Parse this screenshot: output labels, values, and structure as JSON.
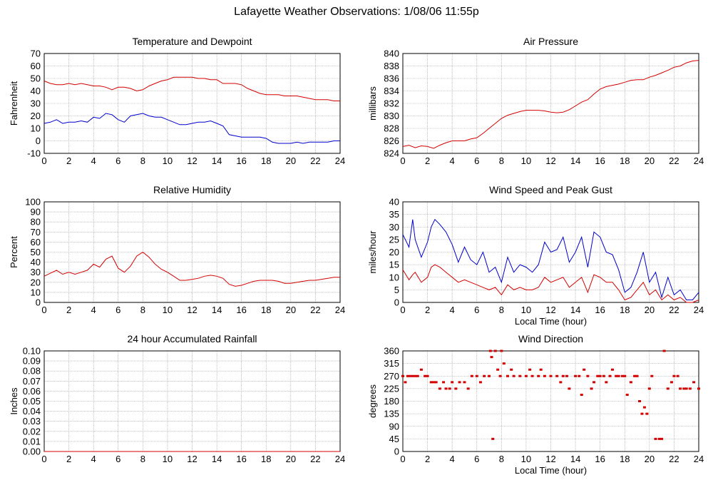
{
  "page": {
    "title": "Lafayette Weather Observations: 1/08/06 11:55p"
  },
  "colors": {
    "series_red": "#d40000",
    "series_blue": "#0000cc",
    "grid": "#999999"
  },
  "chart_data": [
    {
      "id": "temp",
      "type": "line",
      "title": "Temperature and Dewpoint",
      "xlabel": "",
      "ylabel": "Fahrenheit",
      "xlim": [
        0,
        24
      ],
      "ylim": [
        -10,
        70
      ],
      "xticks": [
        0,
        2,
        4,
        6,
        8,
        10,
        12,
        14,
        16,
        18,
        20,
        22,
        24
      ],
      "yticks": [
        -10,
        0,
        10,
        20,
        30,
        40,
        50,
        60,
        70
      ],
      "grid": true,
      "series": [
        {
          "color": "#d40000",
          "x": [
            0,
            0.5,
            1,
            1.5,
            2,
            2.5,
            3,
            3.5,
            4,
            4.5,
            5,
            5.5,
            6,
            6.5,
            7,
            7.5,
            8,
            8.5,
            9,
            9.5,
            10,
            10.5,
            11,
            11.5,
            12,
            12.5,
            13,
            13.5,
            14,
            14.5,
            15,
            15.5,
            16,
            16.5,
            17,
            17.5,
            18,
            18.5,
            19,
            19.5,
            20,
            20.5,
            21,
            21.5,
            22,
            22.5,
            23,
            23.5,
            24
          ],
          "y": [
            48,
            46,
            45,
            45,
            46,
            45,
            46,
            45,
            44,
            44,
            43,
            41,
            43,
            43,
            42,
            40,
            41,
            44,
            46,
            48,
            49,
            51,
            51,
            51,
            51,
            50,
            50,
            49,
            49,
            46,
            46,
            46,
            45,
            42,
            40,
            38,
            37,
            37,
            37,
            36,
            36,
            36,
            35,
            34,
            33,
            33,
            33,
            32,
            32
          ]
        },
        {
          "color": "#0000cc",
          "x": [
            0,
            0.5,
            1,
            1.5,
            2,
            2.5,
            3,
            3.5,
            4,
            4.5,
            5,
            5.5,
            6,
            6.5,
            7,
            7.5,
            8,
            8.5,
            9,
            9.5,
            10,
            10.5,
            11,
            11.5,
            12,
            12.5,
            13,
            13.5,
            14,
            14.5,
            15,
            15.5,
            16,
            16.5,
            17,
            17.5,
            18,
            18.5,
            19,
            19.5,
            20,
            20.5,
            21,
            21.5,
            22,
            22.5,
            23,
            23.5,
            24
          ],
          "y": [
            14,
            15,
            17,
            14,
            15,
            15,
            16,
            15,
            19,
            18,
            22,
            21,
            17,
            15,
            20,
            21,
            22,
            20,
            19,
            19,
            17,
            15,
            13,
            13,
            14,
            15,
            15,
            16,
            14,
            12,
            5,
            4,
            3,
            3,
            3,
            3,
            2,
            -1,
            -2,
            -2,
            -2,
            -1,
            -2,
            -1,
            -1,
            -1,
            -1,
            0,
            0
          ]
        }
      ]
    },
    {
      "id": "pressure",
      "type": "line",
      "title": "Air Pressure",
      "xlabel": "",
      "ylabel": "millibars",
      "xlim": [
        0,
        24
      ],
      "ylim": [
        824,
        840
      ],
      "xticks": [
        0,
        2,
        4,
        6,
        8,
        10,
        12,
        14,
        16,
        18,
        20,
        22,
        24
      ],
      "yticks": [
        824,
        826,
        828,
        830,
        832,
        834,
        836,
        838,
        840
      ],
      "grid": true,
      "series": [
        {
          "color": "#d40000",
          "x": [
            0,
            0.5,
            1,
            1.5,
            2,
            2.5,
            3,
            3.5,
            4,
            4.5,
            5,
            5.5,
            6,
            6.5,
            7,
            7.5,
            8,
            8.5,
            9,
            9.5,
            10,
            10.5,
            11,
            11.5,
            12,
            12.5,
            13,
            13.5,
            14,
            14.5,
            15,
            15.5,
            16,
            16.5,
            17,
            17.5,
            18,
            18.5,
            19,
            19.5,
            20,
            20.5,
            21,
            21.5,
            22,
            22.5,
            23,
            23.5,
            24
          ],
          "y": [
            825.1,
            825.3,
            824.9,
            825.2,
            825.1,
            824.8,
            825.3,
            825.7,
            826.0,
            826.0,
            826.0,
            826.3,
            826.5,
            827.2,
            828.0,
            828.8,
            829.6,
            830.1,
            830.4,
            830.7,
            830.9,
            830.9,
            830.9,
            830.8,
            830.6,
            830.5,
            830.6,
            831.0,
            831.6,
            832.2,
            832.6,
            833.5,
            834.3,
            834.7,
            834.9,
            835.1,
            835.4,
            835.7,
            835.8,
            835.8,
            836.2,
            836.5,
            836.9,
            837.3,
            837.8,
            838.0,
            838.5,
            838.8,
            838.9
          ]
        }
      ]
    },
    {
      "id": "humidity",
      "type": "line",
      "title": "Relative Humidity",
      "xlabel": "",
      "ylabel": "Percent",
      "xlim": [
        0,
        24
      ],
      "ylim": [
        0,
        100
      ],
      "xticks": [
        0,
        2,
        4,
        6,
        8,
        10,
        12,
        14,
        16,
        18,
        20,
        22,
        24
      ],
      "yticks": [
        0,
        10,
        20,
        30,
        40,
        50,
        60,
        70,
        80,
        90,
        100
      ],
      "grid": true,
      "series": [
        {
          "color": "#d40000",
          "x": [
            0,
            0.5,
            1,
            1.5,
            2,
            2.5,
            3,
            3.5,
            4,
            4.5,
            5,
            5.5,
            6,
            6.5,
            7,
            7.5,
            8,
            8.5,
            9,
            9.5,
            10,
            10.5,
            11,
            11.5,
            12,
            12.5,
            13,
            13.5,
            14,
            14.5,
            15,
            15.5,
            16,
            16.5,
            17,
            17.5,
            18,
            18.5,
            19,
            19.5,
            20,
            20.5,
            21,
            21.5,
            22,
            22.5,
            23,
            23.5,
            24
          ],
          "y": [
            26,
            29,
            32,
            28,
            30,
            28,
            30,
            32,
            38,
            35,
            43,
            46,
            34,
            30,
            36,
            46,
            50,
            45,
            38,
            33,
            30,
            26,
            22,
            22,
            23,
            24,
            26,
            27,
            26,
            24,
            18,
            16,
            17,
            19,
            21,
            22,
            22,
            22,
            21,
            19,
            19,
            20,
            21,
            22,
            22,
            23,
            24,
            25,
            25
          ]
        }
      ]
    },
    {
      "id": "wind",
      "type": "line",
      "title": "Wind Speed and Peak Gust",
      "xlabel": "Local Time (hour)",
      "ylabel": "miles/hour",
      "xlim": [
        0,
        24
      ],
      "ylim": [
        0,
        40
      ],
      "xticks": [
        0,
        2,
        4,
        6,
        8,
        10,
        12,
        14,
        16,
        18,
        20,
        22,
        24
      ],
      "yticks": [
        0,
        5,
        10,
        15,
        20,
        25,
        30,
        35,
        40
      ],
      "grid": true,
      "series": [
        {
          "color": "#0000cc",
          "x": [
            0,
            0.5,
            0.8,
            1,
            1.5,
            2,
            2.3,
            2.6,
            3,
            3.5,
            4,
            4.5,
            5,
            5.5,
            6,
            6.5,
            7,
            7.5,
            8,
            8.5,
            9,
            9.5,
            10,
            10.5,
            11,
            11.5,
            12,
            12.5,
            13,
            13.5,
            14,
            14.5,
            15,
            15.5,
            16,
            16.5,
            17,
            17.5,
            18,
            18.5,
            19,
            19.5,
            20,
            20.5,
            21,
            21.5,
            22,
            22.5,
            23,
            23.5,
            24
          ],
          "y": [
            27,
            22,
            33,
            25,
            18,
            24,
            30,
            33,
            31,
            28,
            23,
            16,
            22,
            17,
            15,
            20,
            12,
            14,
            8,
            18,
            12,
            15,
            14,
            12,
            15,
            24,
            20,
            21,
            26,
            16,
            20,
            26,
            14,
            28,
            26,
            20,
            19,
            13,
            4,
            6,
            12,
            20,
            8,
            12,
            2,
            10,
            3,
            5,
            1,
            1,
            4
          ]
        },
        {
          "color": "#d40000",
          "x": [
            0,
            0.5,
            0.8,
            1,
            1.5,
            2,
            2.3,
            2.6,
            3,
            3.5,
            4,
            4.5,
            5,
            5.5,
            6,
            6.5,
            7,
            7.5,
            8,
            8.5,
            9,
            9.5,
            10,
            10.5,
            11,
            11.5,
            12,
            12.5,
            13,
            13.5,
            14,
            14.5,
            15,
            15.5,
            16,
            16.5,
            17,
            17.5,
            18,
            18.5,
            19,
            19.5,
            20,
            20.5,
            21,
            21.5,
            22,
            22.5,
            23,
            23.5,
            24
          ],
          "y": [
            13,
            9,
            11,
            12,
            8,
            10,
            14,
            15,
            14,
            12,
            10,
            8,
            9,
            8,
            7,
            6,
            5,
            6,
            3,
            7,
            5,
            6,
            5,
            5,
            6,
            10,
            8,
            9,
            10,
            6,
            8,
            10,
            4,
            11,
            10,
            8,
            8,
            5,
            1,
            2,
            5,
            8,
            3,
            5,
            1,
            3,
            1,
            2,
            0,
            0,
            1
          ]
        }
      ]
    },
    {
      "id": "rain",
      "type": "line",
      "title": "24 hour Accumulated Rainfall",
      "xlabel": "",
      "ylabel": "Inches",
      "xlim": [
        0,
        24
      ],
      "ylim": [
        0,
        0.1
      ],
      "xticks": [
        0,
        2,
        4,
        6,
        8,
        10,
        12,
        14,
        16,
        18,
        20,
        22,
        24
      ],
      "yticks": [
        0,
        0.01,
        0.02,
        0.03,
        0.04,
        0.05,
        0.06,
        0.07,
        0.08,
        0.09,
        0.1
      ],
      "yticklabels": [
        "0.00",
        "0.01",
        "0.02",
        "0.03",
        "0.04",
        "0.05",
        "0.06",
        "0.07",
        "0.08",
        "0.09",
        "0.10"
      ],
      "grid": true,
      "series": [
        {
          "color": "#d40000",
          "x": [
            0,
            24
          ],
          "y": [
            0,
            0
          ]
        }
      ]
    },
    {
      "id": "direction",
      "type": "scatter",
      "title": "Wind Direction",
      "xlabel": "Local Time (hour)",
      "ylabel": "degrees",
      "xlim": [
        0,
        24
      ],
      "ylim": [
        0,
        360
      ],
      "xticks": [
        0,
        2,
        4,
        6,
        8,
        10,
        12,
        14,
        16,
        18,
        20,
        22,
        24
      ],
      "yticks": [
        0,
        45,
        90,
        135,
        180,
        225,
        270,
        315,
        360
      ],
      "grid": true,
      "series": [
        {
          "color": "#d40000",
          "x": [
            0,
            0.2,
            0.4,
            0.6,
            0.8,
            1.0,
            1.2,
            1.5,
            1.8,
            2.0,
            2.3,
            2.5,
            2.7,
            3.0,
            3.3,
            3.5,
            3.8,
            4.0,
            4.3,
            4.6,
            5.0,
            5.3,
            5.6,
            6.0,
            6.3,
            6.6,
            7.0,
            7.1,
            7.2,
            7.3,
            7.5,
            7.7,
            7.9,
            8.0,
            8.2,
            8.5,
            8.8,
            9.0,
            9.5,
            10.0,
            10.3,
            10.5,
            11.0,
            11.2,
            11.5,
            12.0,
            12.5,
            12.8,
            13.0,
            13.3,
            13.5,
            14.0,
            14.3,
            14.5,
            14.7,
            15.0,
            15.3,
            15.5,
            15.8,
            16.0,
            16.3,
            16.5,
            16.8,
            17.0,
            17.3,
            17.5,
            17.8,
            18.0,
            18.2,
            18.5,
            18.8,
            19.0,
            19.2,
            19.4,
            19.6,
            19.8,
            20.0,
            20.2,
            20.5,
            20.8,
            21.0,
            21.2,
            21.5,
            21.8,
            22.0,
            22.3,
            22.5,
            22.8,
            23.0,
            23.3,
            23.6,
            24.0
          ],
          "y": [
            270,
            248,
            270,
            270,
            270,
            270,
            270,
            293,
            270,
            270,
            248,
            248,
            248,
            225,
            248,
            225,
            225,
            248,
            225,
            248,
            248,
            225,
            270,
            270,
            248,
            270,
            270,
            360,
            338,
            45,
            360,
            293,
            270,
            360,
            315,
            270,
            293,
            270,
            270,
            270,
            293,
            270,
            270,
            293,
            270,
            270,
            270,
            248,
            270,
            270,
            225,
            270,
            270,
            203,
            293,
            270,
            225,
            248,
            270,
            270,
            270,
            248,
            270,
            293,
            270,
            270,
            270,
            270,
            203,
            248,
            270,
            270,
            180,
            135,
            158,
            135,
            225,
            270,
            45,
            45,
            45,
            360,
            225,
            248,
            270,
            270,
            225,
            225,
            225,
            225,
            248,
            225
          ]
        }
      ]
    }
  ]
}
